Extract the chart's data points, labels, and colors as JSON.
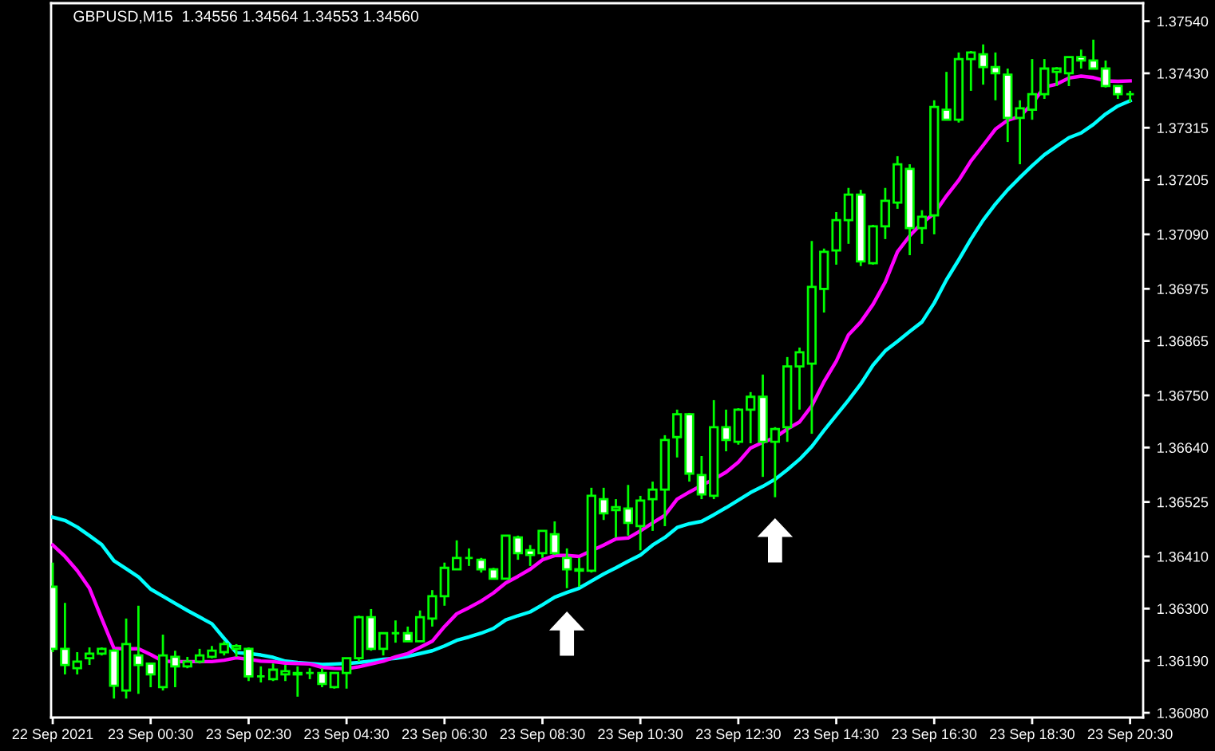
{
  "chart_data": {
    "type": "candlestick",
    "title": "GBPUSD,M15  1.34556 1.34564 1.34553 1.34560",
    "x": [
      "2021-09-22T22:30",
      "2021-09-22T22:45",
      "2021-09-22T23:00",
      "2021-09-22T23:15",
      "2021-09-22T23:30",
      "2021-09-22T23:45",
      "2021-09-23T00:00",
      "2021-09-23T00:15",
      "2021-09-23T00:30",
      "2021-09-23T00:45",
      "2021-09-23T01:00",
      "2021-09-23T01:15",
      "2021-09-23T01:30",
      "2021-09-23T01:45",
      "2021-09-23T02:00",
      "2021-09-23T02:15",
      "2021-09-23T02:30",
      "2021-09-23T02:45",
      "2021-09-23T03:00",
      "2021-09-23T03:15",
      "2021-09-23T03:30",
      "2021-09-23T03:45",
      "2021-09-23T04:00",
      "2021-09-23T04:15",
      "2021-09-23T04:30",
      "2021-09-23T04:45",
      "2021-09-23T05:00",
      "2021-09-23T05:15",
      "2021-09-23T05:30",
      "2021-09-23T05:45",
      "2021-09-23T06:00",
      "2021-09-23T06:15",
      "2021-09-23T06:30",
      "2021-09-23T06:45",
      "2021-09-23T07:00",
      "2021-09-23T07:15",
      "2021-09-23T07:30",
      "2021-09-23T07:45",
      "2021-09-23T08:00",
      "2021-09-23T08:15",
      "2021-09-23T08:30",
      "2021-09-23T08:45",
      "2021-09-23T09:00",
      "2021-09-23T09:15",
      "2021-09-23T09:30",
      "2021-09-23T09:45",
      "2021-09-23T10:00",
      "2021-09-23T10:15",
      "2021-09-23T10:30",
      "2021-09-23T10:45",
      "2021-09-23T11:00",
      "2021-09-23T11:15",
      "2021-09-23T11:30",
      "2021-09-23T11:45",
      "2021-09-23T12:00",
      "2021-09-23T12:15",
      "2021-09-23T12:30",
      "2021-09-23T12:45",
      "2021-09-23T13:00",
      "2021-09-23T13:15",
      "2021-09-23T13:30",
      "2021-09-23T13:45",
      "2021-09-23T14:00",
      "2021-09-23T14:15",
      "2021-09-23T14:30",
      "2021-09-23T14:45",
      "2021-09-23T15:00",
      "2021-09-23T15:15",
      "2021-09-23T15:30",
      "2021-09-23T15:45",
      "2021-09-23T16:00",
      "2021-09-23T16:15",
      "2021-09-23T16:30",
      "2021-09-23T16:45",
      "2021-09-23T17:00",
      "2021-09-23T17:15",
      "2021-09-23T17:30",
      "2021-09-23T17:45",
      "2021-09-23T18:00",
      "2021-09-23T18:15",
      "2021-09-23T18:30",
      "2021-09-23T18:45",
      "2021-09-23T19:00",
      "2021-09-23T19:15",
      "2021-09-23T19:30",
      "2021-09-23T19:45",
      "2021-09-23T20:00",
      "2021-09-23T20:15",
      "2021-09-23T20:30"
    ],
    "series": [
      {
        "type": "line",
        "color": "#00ffff",
        "values": [
          1.36493,
          1.36486,
          1.36472,
          1.36454,
          1.36435,
          1.36401,
          1.36384,
          1.36367,
          1.36341,
          1.36326,
          1.36311,
          1.36296,
          1.36282,
          1.36268,
          1.36237,
          1.36207,
          1.36205,
          1.36202,
          1.36197,
          1.36189,
          1.36186,
          1.36184,
          1.36182,
          1.36183,
          1.36184,
          1.36186,
          1.36189,
          1.36193,
          1.36195,
          1.36199,
          1.36205,
          1.36211,
          1.36221,
          1.36233,
          1.3624,
          1.36248,
          1.36258,
          1.36276,
          1.36285,
          1.36293,
          1.36308,
          1.36324,
          1.36334,
          1.36343,
          1.36358,
          1.36373,
          1.36386,
          1.364,
          1.36413,
          1.36434,
          1.3645,
          1.36471,
          1.36479,
          1.36484,
          1.36498,
          1.36513,
          1.36529,
          1.36545,
          1.36558,
          1.36573,
          1.36593,
          1.36615,
          1.36642,
          1.36676,
          1.36708,
          1.3674,
          1.36774,
          1.36814,
          1.36844,
          1.36864,
          1.36885,
          1.36905,
          1.36945,
          1.36994,
          1.37036,
          1.3708,
          1.3712,
          1.37154,
          1.37184,
          1.3721,
          1.37235,
          1.37258,
          1.37276,
          1.37294,
          1.37304,
          1.37322,
          1.37344,
          1.37361,
          1.37372
        ]
      },
      {
        "type": "line",
        "color": "#ff00ff",
        "values": [
          1.36434,
          1.3641,
          1.3638,
          1.36343,
          1.36279,
          1.36216,
          1.36215,
          1.36215,
          1.36203,
          1.36189,
          1.36188,
          1.36188,
          1.36188,
          1.36188,
          1.36191,
          1.36196,
          1.36193,
          1.36189,
          1.36188,
          1.36185,
          1.36184,
          1.36183,
          1.36176,
          1.36174,
          1.36173,
          1.36177,
          1.36183,
          1.36189,
          1.36198,
          1.36205,
          1.36218,
          1.36231,
          1.36262,
          1.36289,
          1.36302,
          1.36316,
          1.36333,
          1.36354,
          1.36368,
          1.36383,
          1.36403,
          1.36412,
          1.36412,
          1.3641,
          1.36422,
          1.36434,
          1.36447,
          1.36449,
          1.36464,
          1.36481,
          1.36497,
          1.36531,
          1.36546,
          1.3656,
          1.36573,
          1.36588,
          1.36609,
          1.36639,
          1.36651,
          1.36661,
          1.36679,
          1.36694,
          1.36728,
          1.36779,
          1.36822,
          1.36878,
          1.36905,
          1.36942,
          1.36989,
          1.37053,
          1.37087,
          1.37114,
          1.37134,
          1.37171,
          1.37204,
          1.37245,
          1.37278,
          1.37312,
          1.37331,
          1.37339,
          1.37366,
          1.37401,
          1.37407,
          1.3742,
          1.37424,
          1.37421,
          1.37414,
          1.37413,
          1.37414
        ]
      },
      {
        "color": "#00ff00",
        "colors": [
          "#ffffff",
          "#ffffff",
          "#000000",
          "#000000",
          "#000000",
          "#ffffff",
          "#000000",
          "#ffffff",
          "#ffffff",
          "#000000",
          "#ffffff",
          "#000000",
          "#000000",
          "#000000",
          "#000000",
          "#000000",
          "#ffffff",
          "#00ff00",
          "#000000",
          "#000000",
          "#000000",
          "#00ff00",
          "#ffffff",
          "#000000",
          "#000000",
          "#000000",
          "#ffffff",
          "#000000",
          "#00ff00",
          "#ffffff",
          "#000000",
          "#000000",
          "#000000",
          "#000000",
          "#00ff00",
          "#ffffff",
          "#ffffff",
          "#000000",
          "#ffffff",
          "#ffffff",
          "#000000",
          "#ffffff",
          "#ffffff",
          "#ffffff",
          "#000000",
          "#ffffff",
          "#000000",
          "#ffffff",
          "#000000",
          "#000000",
          "#000000",
          "#000000",
          "#ffffff",
          "#ffffff",
          "#000000",
          "#ffffff",
          "#000000",
          "#000000",
          "#ffffff",
          "#000000",
          "#000000",
          "#000000",
          "#000000",
          "#000000",
          "#000000",
          "#000000",
          "#ffffff",
          "#000000",
          "#000000",
          "#000000",
          "#ffffff",
          "#000000",
          "#000000",
          "#ffffff",
          "#000000",
          "#000000",
          "#ffffff",
          "#ffffff",
          "#ffffff",
          "#000000",
          "#000000",
          "#000000",
          "#000000",
          "#000000",
          "#ffffff",
          "#ffffff",
          "#ffffff",
          "#ffffff",
          "#00ff00"
        ],
        "ohlc": [
          [
            1.36346,
            1.36397,
            1.36208,
            1.36215
          ],
          [
            1.36215,
            1.36312,
            1.36161,
            1.36181
          ],
          [
            1.36174,
            1.36208,
            1.36161,
            1.36188
          ],
          [
            1.36195,
            1.36218,
            1.36181,
            1.36205
          ],
          [
            1.36205,
            1.36218,
            1.36201,
            1.36215
          ],
          [
            1.36211,
            1.36215,
            1.3611,
            1.36137
          ],
          [
            1.36127,
            1.36279,
            1.3611,
            1.36225
          ],
          [
            1.36201,
            1.36306,
            1.3612,
            1.36181
          ],
          [
            1.36184,
            1.36184,
            1.36134,
            1.36161
          ],
          [
            1.36134,
            1.36245,
            1.36127,
            1.36201
          ],
          [
            1.36198,
            1.36211,
            1.36134,
            1.36178
          ],
          [
            1.36178,
            1.36198,
            1.36174,
            1.36188
          ],
          [
            1.36188,
            1.36215,
            1.36184,
            1.36201
          ],
          [
            1.36198,
            1.36221,
            1.36195,
            1.36211
          ],
          [
            1.36208,
            1.36231,
            1.36201,
            1.36225
          ],
          [
            1.36215,
            1.36225,
            1.36198,
            1.36221
          ],
          [
            1.36215,
            1.36218,
            1.36147,
            1.36157
          ],
          [
            1.36157,
            1.36178,
            1.36144,
            1.36157
          ],
          [
            1.36151,
            1.36184,
            1.36147,
            1.36171
          ],
          [
            1.36161,
            1.36181,
            1.36147,
            1.36168
          ],
          [
            1.36161,
            1.36178,
            1.36114,
            1.36164
          ],
          [
            1.36164,
            1.36174,
            1.36151,
            1.36164
          ],
          [
            1.36164,
            1.36174,
            1.36134,
            1.36141
          ],
          [
            1.36134,
            1.36164,
            1.36131,
            1.36164
          ],
          [
            1.36164,
            1.36195,
            1.36131,
            1.36195
          ],
          [
            1.36195,
            1.36285,
            1.36188,
            1.36282
          ],
          [
            1.36282,
            1.36299,
            1.36211,
            1.36215
          ],
          [
            1.36215,
            1.36248,
            1.36201,
            1.36248
          ],
          [
            1.36248,
            1.36275,
            1.36228,
            1.36248
          ],
          [
            1.36248,
            1.36262,
            1.36231,
            1.36231
          ],
          [
            1.36231,
            1.36296,
            1.36231,
            1.36282
          ],
          [
            1.36279,
            1.36339,
            1.36262,
            1.36326
          ],
          [
            1.36326,
            1.36397,
            1.36306,
            1.36386
          ],
          [
            1.36383,
            1.36444,
            1.36383,
            1.36407
          ],
          [
            1.36407,
            1.36427,
            1.3639,
            1.36407
          ],
          [
            1.36403,
            1.36407,
            1.36376,
            1.36383
          ],
          [
            1.36383,
            1.36386,
            1.36363,
            1.36363
          ],
          [
            1.36363,
            1.36454,
            1.36363,
            1.36454
          ],
          [
            1.3645,
            1.36454,
            1.36403,
            1.36417
          ],
          [
            1.36423,
            1.36434,
            1.3639,
            1.36413
          ],
          [
            1.36417,
            1.36464,
            1.36407,
            1.36464
          ],
          [
            1.36457,
            1.36484,
            1.36413,
            1.36417
          ],
          [
            1.36407,
            1.36427,
            1.36343,
            1.36383
          ],
          [
            1.36383,
            1.36407,
            1.36346,
            1.3638
          ],
          [
            1.3638,
            1.36555,
            1.36376,
            1.36538
          ],
          [
            1.36531,
            1.36555,
            1.36487,
            1.36501
          ],
          [
            1.36508,
            1.36531,
            1.3645,
            1.36514
          ],
          [
            1.36511,
            1.36561,
            1.36454,
            1.36481
          ],
          [
            1.36474,
            1.36538,
            1.36423,
            1.36528
          ],
          [
            1.36531,
            1.36568,
            1.36464,
            1.36551
          ],
          [
            1.36551,
            1.36666,
            1.36474,
            1.36656
          ],
          [
            1.36662,
            1.3672,
            1.36619,
            1.3671
          ],
          [
            1.3671,
            1.36713,
            1.36568,
            1.36585
          ],
          [
            1.36582,
            1.36622,
            1.36531,
            1.36541
          ],
          [
            1.36538,
            1.3674,
            1.36531,
            1.36683
          ],
          [
            1.36683,
            1.3672,
            1.36632,
            1.36656
          ],
          [
            1.36652,
            1.36723,
            1.36646,
            1.3672
          ],
          [
            1.3672,
            1.36757,
            1.36649,
            1.36747
          ],
          [
            1.36747,
            1.36794,
            1.36578,
            1.36652
          ],
          [
            1.36652,
            1.36683,
            1.36535,
            1.36679
          ],
          [
            1.36683,
            1.36831,
            1.36652,
            1.36811
          ],
          [
            1.36811,
            1.36851,
            1.3672,
            1.36841
          ],
          [
            1.36817,
            1.37076,
            1.36669,
            1.36979
          ],
          [
            1.36975,
            1.3706,
            1.36925,
            1.37053
          ],
          [
            1.37056,
            1.37137,
            1.37026,
            1.3712
          ],
          [
            1.3712,
            1.37188,
            1.3707,
            1.37174
          ],
          [
            1.37174,
            1.37184,
            1.37023,
            1.37033
          ],
          [
            1.37029,
            1.3711,
            1.37026,
            1.37107
          ],
          [
            1.37107,
            1.37188,
            1.3708,
            1.37161
          ],
          [
            1.37157,
            1.37255,
            1.37144,
            1.37238
          ],
          [
            1.37228,
            1.37238,
            1.37046,
            1.37103
          ],
          [
            1.37103,
            1.37141,
            1.3707,
            1.37127
          ],
          [
            1.3713,
            1.37373,
            1.3709,
            1.37359
          ],
          [
            1.37353,
            1.37433,
            1.37332,
            1.37332
          ],
          [
            1.37332,
            1.37474,
            1.37326,
            1.3746
          ],
          [
            1.3746,
            1.37477,
            1.37393,
            1.37474
          ],
          [
            1.3747,
            1.37491,
            1.37406,
            1.37443
          ],
          [
            1.37443,
            1.37474,
            1.37373,
            1.3743
          ],
          [
            1.37427,
            1.3744,
            1.37285,
            1.37336
          ],
          [
            1.37336,
            1.37373,
            1.37238,
            1.37356
          ],
          [
            1.37353,
            1.3746,
            1.37332,
            1.37386
          ],
          [
            1.37386,
            1.3746,
            1.37376,
            1.3744
          ],
          [
            1.37433,
            1.37443,
            1.37403,
            1.3744
          ],
          [
            1.3743,
            1.37464,
            1.37403,
            1.37464
          ],
          [
            1.37464,
            1.3748,
            1.3744,
            1.37457
          ],
          [
            1.37457,
            1.37501,
            1.3744,
            1.3744
          ],
          [
            1.3744,
            1.37457,
            1.374,
            1.37403
          ],
          [
            1.37403,
            1.37403,
            1.37376,
            1.37386
          ],
          [
            1.37386,
            1.37393,
            1.37369,
            1.37386
          ]
        ]
      },
      {
        "type": "scatter",
        "color": "#ffffff",
        "marker": "triangle",
        "x": [
          "2021-09-23T09:00",
          "2021-09-23T13:15"
        ],
        "values": [
          1.36247,
          1.36444
        ]
      }
    ],
    "xlim": [
      "2021-09-22T22:28",
      "2021-09-23T20:46"
    ],
    "xticks": [
      {
        "value": "2021-09-22T22:30",
        "label": "22 Sep 2021"
      },
      {
        "value": "2021-09-23T00:30",
        "label": "23 Sep 00:30"
      },
      {
        "value": "2021-09-23T02:30",
        "label": "23 Sep 02:30"
      },
      {
        "value": "2021-09-23T04:30",
        "label": "23 Sep 04:30"
      },
      {
        "value": "2021-09-23T06:30",
        "label": "23 Sep 06:30"
      },
      {
        "value": "2021-09-23T08:30",
        "label": "23 Sep 08:30"
      },
      {
        "value": "2021-09-23T10:30",
        "label": "23 Sep 10:30"
      },
      {
        "value": "2021-09-23T12:30",
        "label": "23 Sep 12:30"
      },
      {
        "value": "2021-09-23T14:30",
        "label": "23 Sep 14:30"
      },
      {
        "value": "2021-09-23T16:30",
        "label": "23 Sep 16:30"
      },
      {
        "value": "2021-09-23T18:30",
        "label": "23 Sep 18:30"
      },
      {
        "value": "2021-09-23T20:30",
        "label": "23 Sep 20:30"
      }
    ],
    "ylim": [
      1.3607,
      1.37578
    ],
    "yticks": [
      {
        "value": 1.3754,
        "label": "1.37540"
      },
      {
        "value": 1.3743,
        "label": "1.37430"
      },
      1.37315,
      1.37205,
      {
        "value": 1.3709,
        "label": "1.37090"
      },
      1.36975,
      1.36865,
      {
        "value": 1.3675,
        "label": "1.36750"
      },
      {
        "value": 1.3664,
        "label": "1.36640"
      },
      1.36525,
      {
        "value": 1.3641,
        "label": "1.36410"
      },
      {
        "value": 1.363,
        "label": "1.36300"
      },
      {
        "value": 1.3619,
        "label": "1.36190"
      },
      {
        "value": 1.3608,
        "label": "1.36080"
      }
    ]
  }
}
